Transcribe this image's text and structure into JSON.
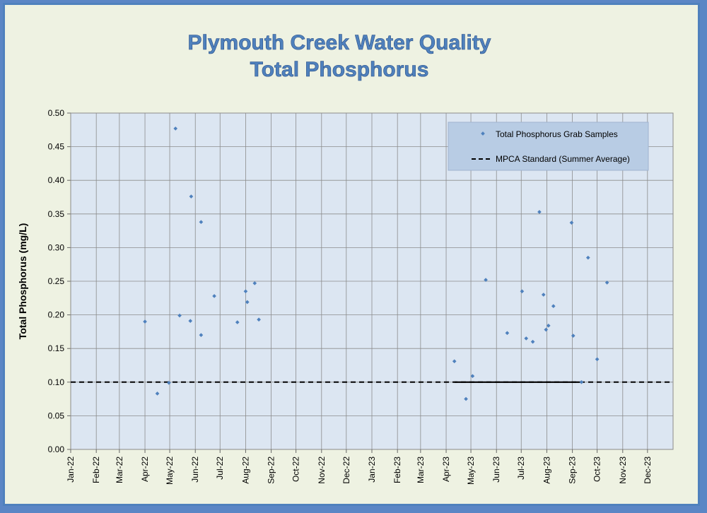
{
  "chart_data": {
    "type": "scatter",
    "title": "Plymouth Creek Water Quality",
    "subtitle": "Total Phosphorus",
    "ylabel": "Total Phosphorus (mg/L)",
    "xlabel": "",
    "ylim": [
      0,
      0.5
    ],
    "yticks": [
      "0.00",
      "0.05",
      "0.10",
      "0.15",
      "0.20",
      "0.25",
      "0.30",
      "0.35",
      "0.40",
      "0.45",
      "0.50"
    ],
    "xticks": [
      "Jan-22",
      "Feb-22",
      "Mar-22",
      "Apr-22",
      "May-22",
      "Jun-22",
      "Jul-22",
      "Aug-22",
      "Sep-22",
      "Oct-22",
      "Nov-22",
      "Dec-22",
      "Jan-23",
      "Feb-23",
      "Mar-23",
      "Apr-23",
      "May-23",
      "Jun-23",
      "Jul-23",
      "Aug-23",
      "Sep-23",
      "Oct-23",
      "Nov-23",
      "Dec-23"
    ],
    "grid": true,
    "legend_position": "top-right",
    "series": [
      {
        "name": "Total Phosphorus Grab Samples",
        "kind": "scatter",
        "color": "#4f81bd",
        "points": [
          {
            "x": "2022-04-01",
            "y": 0.19
          },
          {
            "x": "2022-04-16",
            "y": 0.083
          },
          {
            "x": "2022-04-30",
            "y": 0.099
          },
          {
            "x": "2022-05-08",
            "y": 0.477
          },
          {
            "x": "2022-05-13",
            "y": 0.199
          },
          {
            "x": "2022-05-26",
            "y": 0.191
          },
          {
            "x": "2022-05-27",
            "y": 0.376
          },
          {
            "x": "2022-06-08",
            "y": 0.17
          },
          {
            "x": "2022-06-08",
            "y": 0.338
          },
          {
            "x": "2022-06-24",
            "y": 0.228
          },
          {
            "x": "2022-07-22",
            "y": 0.189
          },
          {
            "x": "2022-08-01",
            "y": 0.235
          },
          {
            "x": "2022-08-03",
            "y": 0.219
          },
          {
            "x": "2022-08-12",
            "y": 0.247
          },
          {
            "x": "2022-08-17",
            "y": 0.193
          },
          {
            "x": "2023-04-11",
            "y": 0.131
          },
          {
            "x": "2023-04-25",
            "y": 0.075
          },
          {
            "x": "2023-05-03",
            "y": 0.109
          },
          {
            "x": "2023-05-19",
            "y": 0.252
          },
          {
            "x": "2023-06-14",
            "y": 0.173
          },
          {
            "x": "2023-07-02",
            "y": 0.235
          },
          {
            "x": "2023-07-07",
            "y": 0.165
          },
          {
            "x": "2023-07-15",
            "y": 0.16
          },
          {
            "x": "2023-07-23",
            "y": 0.353
          },
          {
            "x": "2023-07-28",
            "y": 0.23
          },
          {
            "x": "2023-07-31",
            "y": 0.178
          },
          {
            "x": "2023-08-03",
            "y": 0.184
          },
          {
            "x": "2023-08-09",
            "y": 0.213
          },
          {
            "x": "2023-08-31",
            "y": 0.337
          },
          {
            "x": "2023-09-02",
            "y": 0.169
          },
          {
            "x": "2023-09-12",
            "y": 0.1
          },
          {
            "x": "2023-09-20",
            "y": 0.285
          },
          {
            "x": "2023-10-01",
            "y": 0.134
          },
          {
            "x": "2023-10-13",
            "y": 0.248
          }
        ]
      },
      {
        "name": "MPCA Standard (Summer Average)",
        "kind": "line",
        "color": "#000000",
        "style": "dashed",
        "y": 0.1,
        "x_range": [
          "2022-01-01",
          "2023-12-31"
        ]
      }
    ],
    "highlight_segment": {
      "x_range": [
        "2023-04-11",
        "2023-09-12"
      ],
      "y": 0.1,
      "color": "#000000"
    }
  }
}
